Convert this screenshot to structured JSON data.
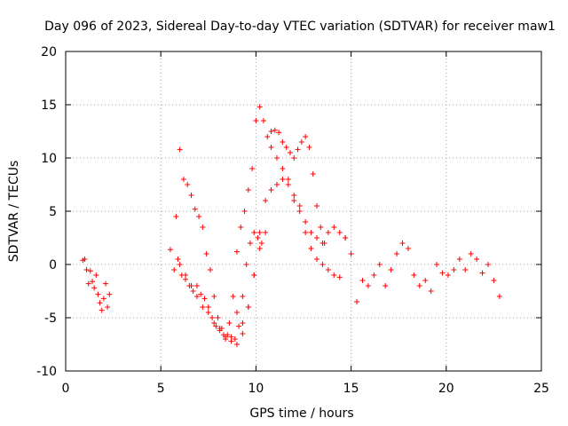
{
  "chart_data": {
    "type": "scatter",
    "title": "Day 096 of 2023, Sidereal Day-to-day VTEC variation (SDTVAR) for receiver maw1",
    "xlabel": "GPS time / hours",
    "ylabel": "SDTVAR / TECUs",
    "xlim": [
      0,
      25
    ],
    "ylim": [
      -10,
      20
    ],
    "xticks": [
      "0",
      "5",
      "10",
      "15",
      "20",
      "25"
    ],
    "yticks": [
      "-10",
      "-5",
      "0",
      "5",
      "10",
      "15",
      "20"
    ],
    "grid": true,
    "marker": "plus",
    "color": "#ff0000",
    "series": [
      {
        "name": "SDTVAR",
        "x": [
          0.9,
          1.0,
          1.1,
          1.2,
          1.3,
          1.4,
          1.5,
          1.6,
          1.7,
          1.8,
          1.9,
          2.0,
          2.1,
          2.2,
          2.3,
          5.5,
          5.7,
          5.9,
          6.1,
          6.3,
          6.5,
          6.7,
          6.9,
          7.1,
          7.3,
          7.5,
          7.7,
          7.9,
          8.1,
          8.3,
          8.5,
          8.7,
          8.9,
          9.1,
          9.3,
          9.5,
          9.7,
          9.9,
          10.1,
          10.3,
          10.5,
          5.8,
          6.0,
          6.2,
          6.4,
          6.6,
          6.8,
          7.0,
          7.2,
          7.4,
          7.6,
          7.8,
          8.0,
          8.2,
          8.4,
          8.6,
          8.8,
          9.0,
          9.2,
          9.4,
          9.6,
          9.8,
          10.0,
          10.2,
          10.4,
          10.6,
          10.8,
          11.0,
          11.2,
          11.4,
          11.6,
          11.8,
          12.0,
          12.2,
          12.4,
          12.6,
          12.8,
          13.0,
          13.2,
          13.4,
          13.6,
          9.0,
          9.3,
          9.6,
          9.9,
          10.2,
          10.5,
          10.8,
          11.1,
          11.4,
          11.7,
          12.0,
          12.3,
          12.6,
          12.9,
          13.2,
          13.5,
          13.8,
          14.1,
          14.4,
          14.7,
          15.0,
          10.8,
          11.1,
          11.4,
          11.7,
          12.0,
          12.3,
          12.6,
          12.9,
          13.2,
          13.5,
          13.8,
          14.1,
          14.4,
          14.7,
          6.0,
          6.3,
          6.6,
          6.9,
          7.2,
          7.5,
          7.8,
          8.1,
          8.4,
          8.7,
          9.0,
          9.3,
          9.6,
          9.9,
          10.2,
          15.3,
          15.6,
          15.9,
          16.2,
          16.5,
          16.8,
          17.1,
          17.4,
          17.7,
          18.0,
          18.3,
          18.6,
          18.9,
          19.2,
          19.5,
          19.8,
          20.1,
          20.4,
          20.7,
          21.0,
          21.3,
          21.6,
          21.9,
          22.2,
          22.5,
          22.8
        ],
        "y": [
          0.4,
          0.5,
          -0.5,
          -1.8,
          -0.6,
          -1.6,
          -2.2,
          -1.0,
          -2.8,
          -3.6,
          -4.3,
          -3.2,
          -1.8,
          -4.0,
          -2.8,
          1.4,
          -0.5,
          0.5,
          -1.0,
          -1.4,
          -2.0,
          -2.5,
          -2.0,
          -2.8,
          -3.2,
          -4.0,
          -5.0,
          -5.8,
          -6.2,
          -6.6,
          -6.6,
          -6.8,
          -7.0,
          -5.8,
          -3.0,
          0.0,
          2.0,
          3.0,
          2.5,
          2.0,
          3.0,
          4.5,
          10.8,
          8.0,
          7.5,
          6.5,
          5.2,
          4.5,
          3.5,
          1.0,
          -0.5,
          -3.0,
          -5.0,
          -6.0,
          -7.0,
          -5.5,
          -3.0,
          1.2,
          3.5,
          5.0,
          7.0,
          9.0,
          13.5,
          14.8,
          13.5,
          12.0,
          12.5,
          12.6,
          12.4,
          11.5,
          11.0,
          10.5,
          10.0,
          10.8,
          11.5,
          12.0,
          11.0,
          8.5,
          5.5,
          3.5,
          2.0,
          -4.5,
          -5.5,
          -4.0,
          -1.0,
          3.0,
          6.0,
          7.0,
          7.5,
          8.0,
          7.5,
          6.5,
          5.0,
          3.0,
          1.5,
          0.5,
          0.0,
          -0.5,
          -1.0,
          -1.2,
          2.5,
          1.0,
          11.0,
          10.0,
          9.0,
          8.0,
          6.0,
          5.5,
          4.0,
          3.0,
          2.5,
          2.0,
          3.0,
          3.5,
          3.0,
          2.5,
          0.0,
          -1.0,
          -2.0,
          -3.0,
          -4.0,
          -4.5,
          -5.5,
          -6.0,
          -6.8,
          -7.2,
          -7.5,
          -6.5,
          -4.0,
          -1.0,
          1.5,
          -3.5,
          -1.5,
          -2.0,
          -1.0,
          0.0,
          -2.0,
          -0.5,
          1.0,
          2.0,
          1.5,
          -1.0,
          -2.0,
          -1.5,
          -2.5,
          0.0,
          -0.8,
          -1.0,
          -0.5,
          0.5,
          -0.5,
          1.0,
          0.5,
          -0.8,
          0.0,
          -1.5,
          -3.0
        ]
      }
    ]
  }
}
